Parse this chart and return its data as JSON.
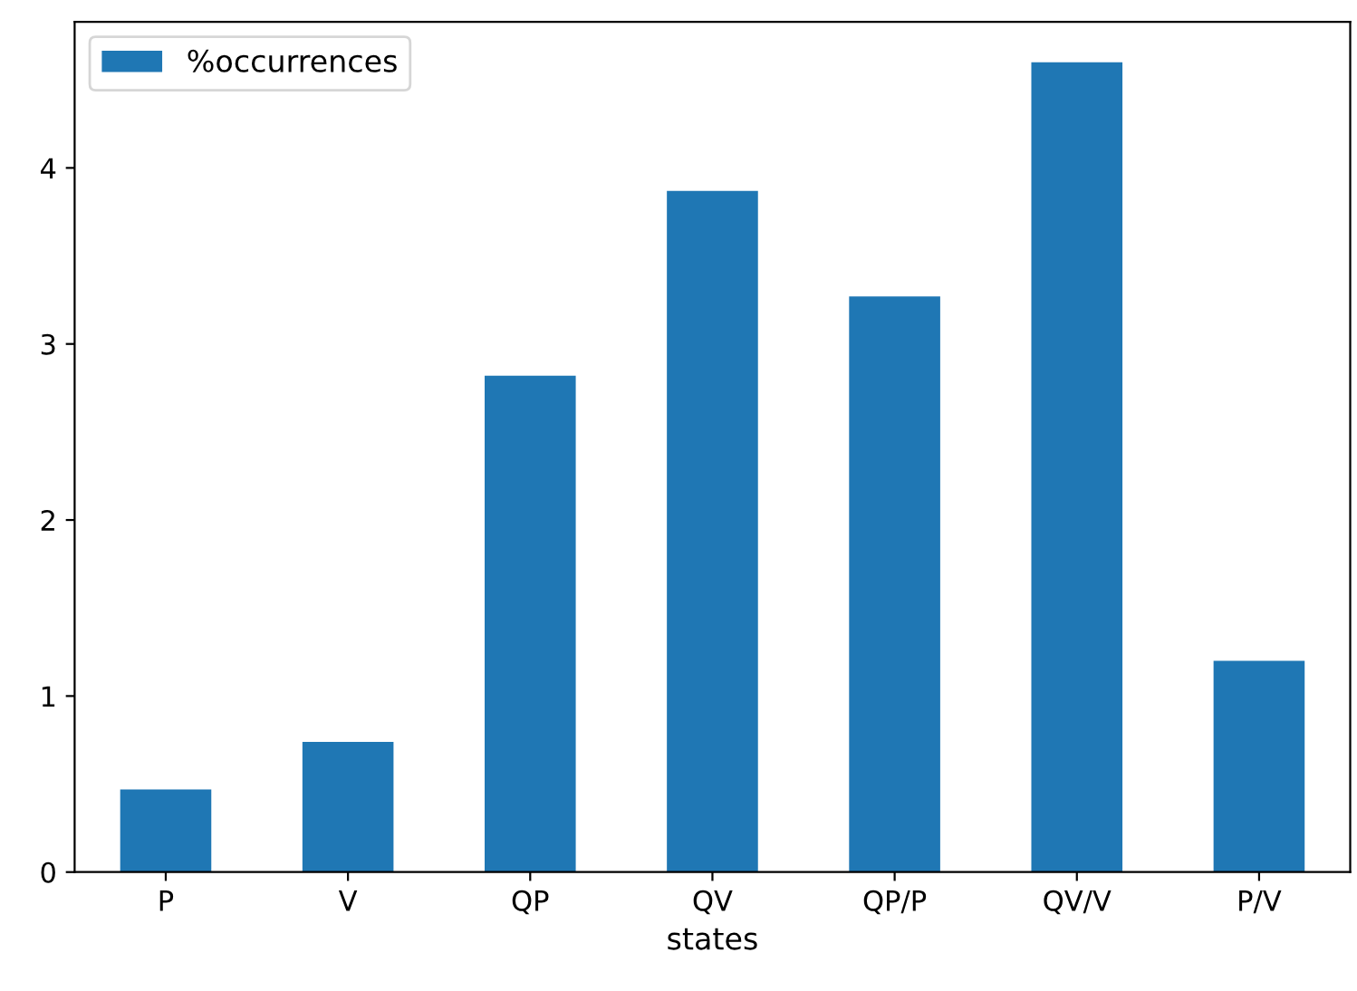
{
  "chart_data": {
    "type": "bar",
    "xlabel": "states",
    "categories": [
      "P",
      "V",
      "QP",
      "QV",
      "QP/P",
      "QV/V",
      "P/V"
    ],
    "series": [
      {
        "name": "%occurrences",
        "color": "#1f77b4",
        "values": [
          0.47,
          0.74,
          2.82,
          3.87,
          3.27,
          4.6,
          1.2
        ]
      }
    ],
    "ylim": [
      0,
      4.83
    ],
    "yticks": [
      0,
      1,
      2,
      3,
      4
    ],
    "grid": false,
    "legend": "top left"
  }
}
